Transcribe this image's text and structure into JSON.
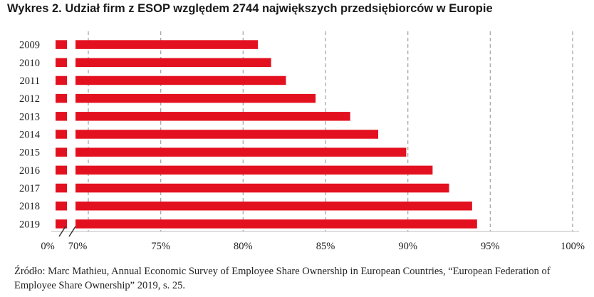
{
  "chart_data": {
    "type": "bar",
    "orientation": "horizontal",
    "title": "Wykres 2. Udział firm z ESOP względem 2744 największych przedsiębiorców w Europie",
    "categories": [
      "2009",
      "2010",
      "2011",
      "2012",
      "2013",
      "2014",
      "2015",
      "2016",
      "2017",
      "2018",
      "2019"
    ],
    "values": [
      80.9,
      81.7,
      82.6,
      84.4,
      86.5,
      88.2,
      89.9,
      91.5,
      92.5,
      93.9,
      94.2
    ],
    "unit": "%",
    "xlim": [
      70,
      100
    ],
    "axis_break": true,
    "x_ticks": [
      {
        "value": 0,
        "label": "0%"
      },
      {
        "value": 70,
        "label": "70%"
      },
      {
        "value": 75,
        "label": "75%"
      },
      {
        "value": 80,
        "label": "80%"
      },
      {
        "value": 85,
        "label": "85%"
      },
      {
        "value": 90,
        "label": "90%"
      },
      {
        "value": 95,
        "label": "95%"
      },
      {
        "value": 100,
        "label": "100%"
      }
    ],
    "xlabel": "",
    "ylabel": "",
    "grid": "vertical dashed",
    "bar_color": "#e3111f",
    "grid_color": "#a8a8a8"
  },
  "source": "Źródło: Marc Mathieu, Annual Economic Survey of Employee Share Ownership in European Countries, “European Federation of Employee Share Ownership” 2019, s. 25."
}
